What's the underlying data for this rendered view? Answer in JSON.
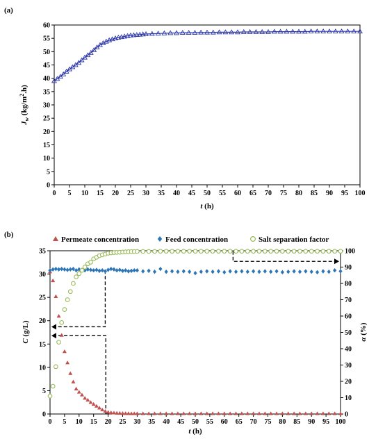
{
  "chart_data": [
    {
      "type": "line",
      "panel_label": "(a)",
      "xlabel": "t (h)",
      "ylabel": "J_w (kg/m².h)",
      "xlim": [
        0,
        100
      ],
      "ylim": [
        0,
        60
      ],
      "xticks": [
        0,
        5,
        10,
        15,
        20,
        25,
        30,
        35,
        40,
        45,
        50,
        55,
        60,
        65,
        70,
        75,
        80,
        85,
        90,
        95,
        100
      ],
      "yticks": [
        0,
        5,
        10,
        15,
        20,
        25,
        30,
        35,
        40,
        45,
        50,
        55,
        60
      ],
      "grid": false,
      "marker": "triangle-open",
      "color": "#2b35a8",
      "series": [
        {
          "x": [
            0,
            1,
            2,
            3,
            4,
            5,
            6,
            7,
            8,
            9,
            10,
            11,
            12,
            13,
            14,
            15,
            16,
            17,
            18,
            19,
            20,
            21,
            22,
            23,
            24,
            25,
            26,
            27,
            28,
            29,
            30,
            32,
            34,
            36,
            38,
            40,
            42,
            44,
            46,
            48,
            50,
            52,
            54,
            56,
            58,
            60,
            62,
            64,
            66,
            68,
            70,
            72,
            74,
            76,
            78,
            80,
            82,
            84,
            86,
            88,
            90,
            92,
            94,
            96,
            98,
            100
          ],
          "values": [
            39.0,
            39.8,
            40.6,
            41.5,
            42.5,
            43.4,
            44.2,
            45.0,
            45.8,
            46.8,
            47.8,
            48.7,
            49.6,
            50.6,
            51.6,
            52.5,
            53.2,
            53.8,
            54.3,
            54.7,
            55.0,
            55.3,
            55.5,
            55.7,
            55.9,
            56.1,
            56.2,
            56.3,
            56.4,
            56.5,
            56.6,
            56.7,
            56.8,
            56.9,
            57.0,
            57.0,
            57.1,
            57.1,
            57.1,
            57.2,
            57.2,
            57.2,
            57.3,
            57.3,
            57.3,
            57.3,
            57.4,
            57.4,
            57.4,
            57.4,
            57.4,
            57.5,
            57.5,
            57.5,
            57.5,
            57.5,
            57.5,
            57.6,
            57.6,
            57.6,
            57.6,
            57.6,
            57.6,
            57.6,
            57.6,
            57.6
          ]
        }
      ]
    },
    {
      "type": "scatter",
      "panel_label": "(b)",
      "xlabel": "t (h)",
      "ylabel": "C (g/L)",
      "y2label": "α (%)",
      "xlim": [
        0,
        100
      ],
      "ylim": [
        0,
        35
      ],
      "y2lim": [
        0,
        100
      ],
      "xticks": [
        0,
        5,
        10,
        15,
        20,
        25,
        30,
        35,
        40,
        45,
        50,
        55,
        60,
        65,
        70,
        75,
        80,
        85,
        90,
        95,
        100
      ],
      "yticks": [
        0,
        5,
        10,
        15,
        20,
        25,
        30,
        35
      ],
      "y2ticks": [
        0,
        10,
        20,
        30,
        40,
        50,
        60,
        70,
        80,
        90,
        100
      ],
      "legend_position": "top",
      "series": [
        {
          "name": "Permeate concentration",
          "color": "#c0504d",
          "marker": "triangle",
          "axis": "left",
          "x": [
            0,
            1,
            2,
            3,
            4,
            5,
            6,
            7,
            8,
            9,
            10,
            11,
            12,
            13,
            14,
            15,
            16,
            17,
            18,
            19,
            20,
            21,
            22,
            23,
            24,
            25,
            26,
            27,
            28,
            29,
            30,
            32,
            34,
            36,
            38,
            40,
            42,
            44,
            46,
            48,
            50,
            52,
            54,
            56,
            58,
            60,
            62,
            64,
            66,
            68,
            70,
            72,
            74,
            76,
            78,
            80,
            82,
            84,
            86,
            88,
            90,
            92,
            94,
            96,
            98,
            100
          ],
          "values": [
            30.5,
            28.6,
            25.2,
            21.0,
            16.9,
            13.4,
            11.0,
            8.7,
            6.9,
            5.4,
            4.7,
            4.1,
            3.4,
            3.0,
            2.5,
            2.1,
            1.7,
            1.3,
            0.9,
            0.6,
            0.4,
            0.3,
            0.25,
            0.2,
            0.18,
            0.15,
            0.13,
            0.12,
            0.1,
            0.1,
            0.1,
            0.1,
            0.1,
            0.1,
            0.1,
            0.1,
            0.1,
            0.1,
            0.1,
            0.1,
            0.1,
            0.1,
            0.1,
            0.1,
            0.1,
            0.1,
            0.1,
            0.1,
            0.1,
            0.1,
            0.1,
            0.1,
            0.1,
            0.1,
            0.1,
            0.1,
            0.1,
            0.1,
            0.1,
            0.1,
            0.1,
            0.1,
            0.1,
            0.1,
            0.1,
            0.1
          ]
        },
        {
          "name": "Feed concentration",
          "color": "#2e75b6",
          "marker": "diamond",
          "axis": "left",
          "x": [
            0,
            1,
            2,
            3,
            4,
            5,
            6,
            7,
            8,
            9,
            10,
            11,
            12,
            13,
            14,
            15,
            16,
            17,
            18,
            19,
            20,
            21,
            22,
            23,
            24,
            25,
            26,
            27,
            28,
            29,
            30,
            32,
            34,
            36,
            38,
            40,
            42,
            44,
            46,
            48,
            50,
            52,
            54,
            56,
            58,
            60,
            62,
            64,
            66,
            68,
            70,
            72,
            74,
            76,
            78,
            80,
            82,
            84,
            86,
            88,
            90,
            92,
            94,
            96,
            98,
            100
          ],
          "values": [
            30.8,
            31.0,
            31.1,
            31.0,
            31.1,
            31.0,
            30.9,
            31.0,
            31.1,
            30.8,
            31.0,
            30.9,
            30.8,
            31.0,
            30.9,
            30.8,
            30.9,
            30.7,
            30.8,
            30.6,
            30.9,
            31.1,
            31.0,
            30.8,
            30.9,
            30.7,
            30.8,
            30.6,
            30.7,
            30.8,
            30.8,
            30.6,
            30.7,
            30.5,
            31.1,
            30.5,
            30.6,
            30.5,
            30.6,
            30.5,
            30.2,
            30.5,
            30.6,
            30.5,
            30.6,
            30.4,
            30.6,
            30.5,
            30.6,
            30.5,
            30.6,
            30.5,
            30.6,
            30.5,
            30.6,
            30.4,
            30.5,
            30.6,
            30.5,
            30.6,
            30.5,
            30.4,
            30.6,
            30.5,
            30.8,
            30.6
          ]
        },
        {
          "name": "Salt separation factor",
          "color": "#9bbb59",
          "marker": "circle-open",
          "axis": "right",
          "x": [
            0,
            1,
            2,
            3,
            4,
            5,
            6,
            7,
            8,
            9,
            10,
            11,
            12,
            13,
            14,
            15,
            16,
            17,
            18,
            19,
            20,
            21,
            22,
            23,
            24,
            25,
            26,
            27,
            28,
            29,
            30,
            32,
            34,
            36,
            38,
            40,
            42,
            44,
            46,
            48,
            50,
            52,
            54,
            56,
            58,
            60,
            62,
            64,
            66,
            68,
            70,
            72,
            74,
            76,
            78,
            80,
            82,
            84,
            86,
            88,
            90,
            92,
            94,
            96,
            98,
            100
          ],
          "values": [
            11,
            17,
            29,
            44,
            56,
            64,
            70,
            75,
            80,
            84,
            86,
            88,
            90,
            92,
            93,
            95,
            96,
            97,
            97.5,
            98,
            98.5,
            98.7,
            98.9,
            99,
            99.1,
            99.2,
            99.3,
            99.4,
            99.5,
            99.5,
            99.6,
            99.6,
            99.6,
            99.6,
            99.7,
            99.7,
            99.7,
            99.7,
            99.7,
            99.7,
            99.7,
            99.7,
            99.7,
            99.7,
            99.7,
            99.7,
            99.7,
            99.7,
            99.7,
            99.7,
            99.7,
            99.7,
            99.7,
            99.7,
            99.7,
            99.7,
            99.7,
            99.7,
            99.7,
            99.7,
            99.7,
            99.7,
            99.7,
            99.7,
            99.7,
            99.7
          ]
        }
      ]
    }
  ]
}
